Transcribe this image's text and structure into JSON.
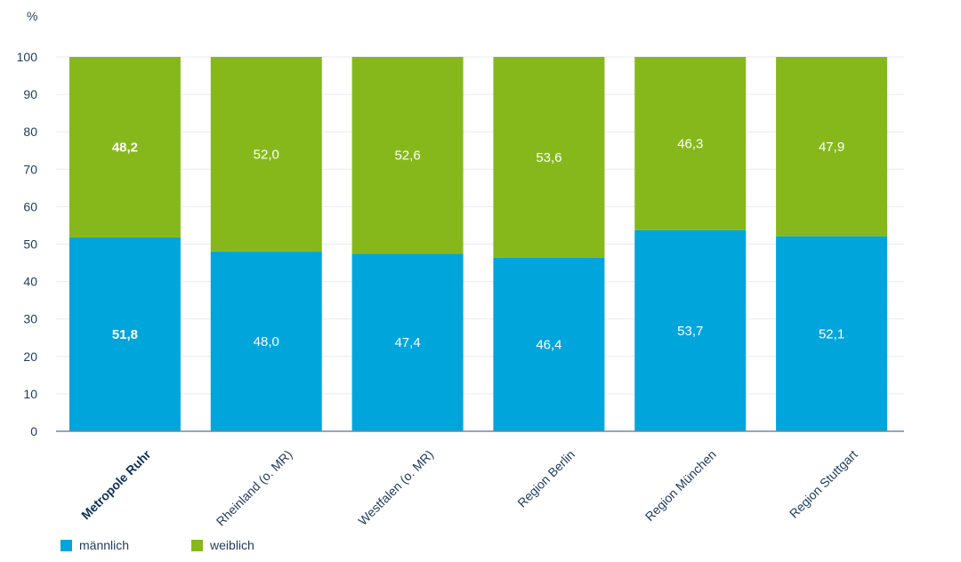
{
  "chart_data": {
    "type": "bar",
    "stacked": true,
    "unit_label": "%",
    "ylim": [
      0,
      100
    ],
    "yticks": [
      0,
      10,
      20,
      30,
      40,
      50,
      60,
      70,
      80,
      90,
      100
    ],
    "categories": [
      "Metropole Ruhr",
      "Rheinland (o. MR)",
      "Westfalen (o. MR)",
      "Region Berlin",
      "Region München",
      "Region Stuttgart"
    ],
    "highlight_category": "Metropole Ruhr",
    "series": [
      {
        "name": "männlich",
        "color": "#00a5dc",
        "values": [
          51.8,
          48.0,
          47.4,
          46.4,
          53.7,
          52.1
        ],
        "labels": [
          "51,8",
          "48,0",
          "47,4",
          "46,4",
          "53,7",
          "52,1"
        ]
      },
      {
        "name": "weiblich",
        "color": "#86b81c",
        "values": [
          48.2,
          52.0,
          52.6,
          53.6,
          46.3,
          47.9
        ],
        "labels": [
          "48,2",
          "52,0",
          "52,6",
          "53,6",
          "46,3",
          "47,9"
        ]
      }
    ],
    "grid": true,
    "legend_position": "bottom-left"
  }
}
